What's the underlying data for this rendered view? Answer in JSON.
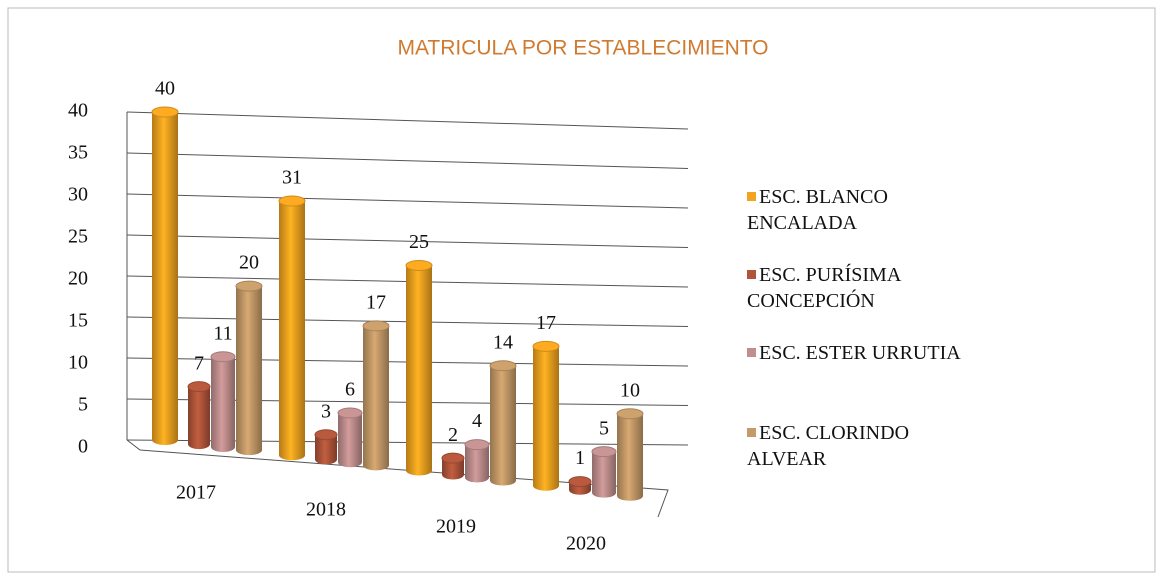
{
  "chart_data": {
    "type": "bar3d",
    "title": "MATRICULA POR ESTABLECIMIENTO",
    "categories": [
      "2017",
      "2018",
      "2019",
      "2020"
    ],
    "series": [
      {
        "name": "ESC. BLANCO ENCALADA",
        "color": "#f2a31f",
        "values": [
          40,
          31,
          25,
          17
        ]
      },
      {
        "name": "ESC. PURÍSIMA CONCEPCIÓN",
        "color": "#b0553a",
        "values": [
          7,
          3,
          2,
          1
        ]
      },
      {
        "name": "ESC. ESTER URRUTIA",
        "color": "#c08e8e",
        "values": [
          11,
          6,
          4,
          5
        ]
      },
      {
        "name": "ESC. CLORINDO ALVEAR",
        "color": "#c49a68",
        "values": [
          20,
          17,
          14,
          10
        ]
      }
    ],
    "ylim": [
      0,
      40
    ],
    "yticks": [
      0,
      5,
      10,
      15,
      20,
      25,
      30,
      35,
      40
    ],
    "grid": true,
    "legend": "right"
  }
}
